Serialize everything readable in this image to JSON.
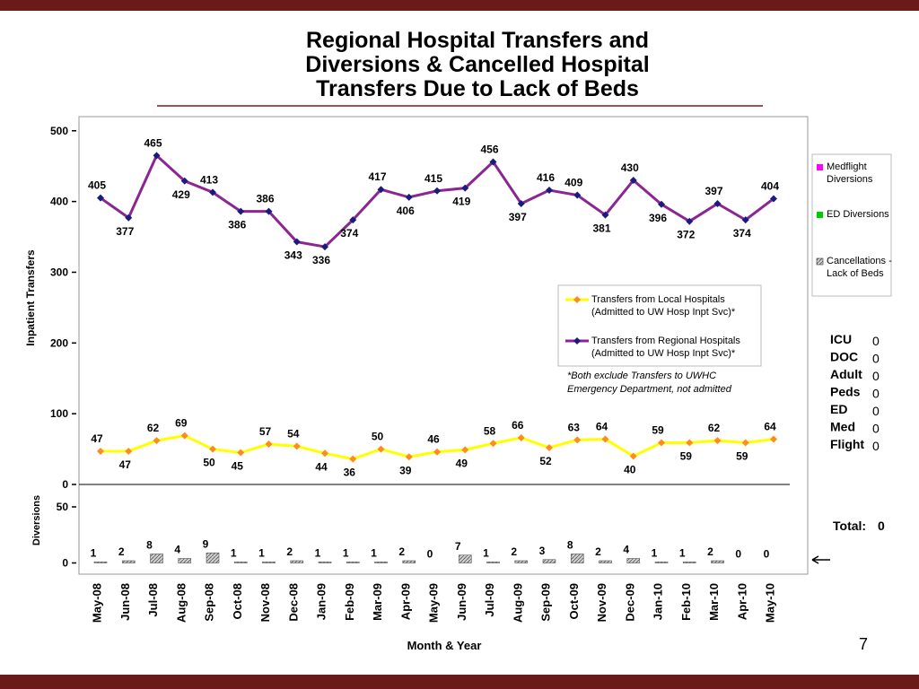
{
  "title": "Regional Hospital Transfers and Diversions & Cancelled Hospital Transfers Due to Lack of Beds",
  "page_number": "7",
  "chart_data": [
    {
      "type": "line",
      "y_label": "Inpatient Transfers",
      "ylim": [
        0,
        520
      ],
      "yticks": [
        0,
        100,
        200,
        300,
        400,
        500
      ],
      "note": "*Both exclude Transfers to UWHC Emergency Department, not admitted",
      "series": [
        {
          "name": "Transfers from Local Hospitals (Admitted to UW Hosp Inpt Svc)*",
          "color": "#ffff00",
          "marker_color": "#ff8c1a",
          "values": [
            47,
            47,
            62,
            69,
            50,
            45,
            57,
            54,
            44,
            36,
            50,
            39,
            46,
            49,
            58,
            66,
            52,
            63,
            64,
            40,
            59,
            59,
            62,
            59,
            64
          ]
        },
        {
          "name": "Transfers from Regional Hospitals (Admitted to UW Hosp Inpt Svc)*",
          "color": "#8b2591",
          "marker_color": "#1a1a80",
          "values": [
            405,
            377,
            465,
            429,
            413,
            386,
            386,
            343,
            336,
            374,
            417,
            406,
            415,
            419,
            456,
            397,
            416,
            409,
            381,
            430,
            396,
            372,
            397,
            374,
            404
          ]
        }
      ]
    },
    {
      "type": "bar",
      "y_label": "Diversions",
      "x_label": "Month & Year",
      "categories": [
        "May-08",
        "Jun-08",
        "Jul-08",
        "Aug-08",
        "Sep-08",
        "Oct-08",
        "Nov-08",
        "Dec-08",
        "Jan-09",
        "Feb-09",
        "Mar-09",
        "Apr-09",
        "May-09",
        "Jun-09",
        "Jul-09",
        "Aug-09",
        "Sep-09",
        "Oct-09",
        "Nov-09",
        "Dec-09",
        "Jan-10",
        "Feb-10",
        "Mar-10",
        "Apr-10",
        "May-10"
      ],
      "ylim": [
        -10,
        70
      ],
      "yticks": [
        0,
        50
      ],
      "legend": [
        {
          "name": "Medflight Diversions",
          "color": "#ff00ff"
        },
        {
          "name": "ED Diversions",
          "color": "#00cc00"
        }
      ],
      "series": [
        {
          "name": "Cancellations - Lack of Beds",
          "color": "#b0b0b0",
          "values": [
            1,
            2,
            8,
            4,
            9,
            1,
            1,
            2,
            1,
            1,
            1,
            2,
            0,
            7,
            1,
            2,
            3,
            8,
            2,
            4,
            1,
            1,
            2,
            0,
            0
          ]
        }
      ]
    }
  ],
  "side_panel": {
    "counts": [
      {
        "label": "ICU",
        "value": 0
      },
      {
        "label": "DOC",
        "value": 0
      },
      {
        "label": "Adult",
        "value": 0
      },
      {
        "label": "Peds",
        "value": 0
      },
      {
        "label": "ED",
        "value": 0
      },
      {
        "label": "Med",
        "value": 0
      },
      {
        "label": "Flight",
        "value": 0
      }
    ],
    "total": {
      "label": "Total:",
      "value": 0
    }
  }
}
